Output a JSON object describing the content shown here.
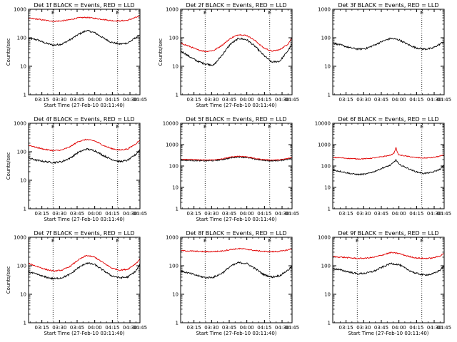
{
  "figure": {
    "rows": 3,
    "cols": 3,
    "colors": {
      "events": "#000000",
      "lld": "#e00000",
      "background": "#ffffff",
      "axes": "#000000"
    }
  },
  "chart_data": [
    {
      "type": "line",
      "title": "Det 1f BLACK = Events, RED = LLD",
      "xlabel": "Start Time (27-Feb-10 03:11:40)",
      "ylabel": "Counts/sec",
      "xlim": [
        3.667,
        98.5
      ],
      "ylim": [
        1,
        1000
      ],
      "yscale": "log",
      "xticks": [
        15,
        30,
        45,
        60,
        75,
        90,
        105
      ],
      "xtick_labels": [
        "03:15",
        "03:30",
        "03:45",
        "04:00",
        "04:15",
        "04:30",
        "04:45"
      ],
      "yticks": [
        1,
        10,
        100,
        1000
      ],
      "ytick_labels": [
        "1",
        "10",
        "100",
        "1000"
      ],
      "markers": [
        {
          "t": 24.5,
          "label": "E"
        },
        {
          "t": 79.5,
          "label": "E"
        }
      ],
      "series": [
        {
          "name": "Events",
          "color": "black",
          "x": [
            3.7,
            11,
            18,
            25,
            32,
            39,
            46,
            53,
            60,
            67,
            74,
            81,
            88,
            95,
            98.5
          ],
          "values": [
            95,
            85,
            65,
            55,
            60,
            85,
            130,
            180,
            150,
            100,
            70,
            60,
            65,
            100,
            130
          ]
        },
        {
          "name": "LLD",
          "color": "red",
          "x": [
            3.7,
            11,
            18,
            25,
            32,
            39,
            46,
            53,
            60,
            67,
            74,
            81,
            88,
            95,
            98.5
          ],
          "values": [
            480,
            450,
            410,
            380,
            390,
            430,
            500,
            520,
            480,
            440,
            400,
            390,
            410,
            520,
            570
          ]
        }
      ]
    },
    {
      "type": "line",
      "title": "Det 2f BLACK = Events, RED = LLD",
      "xlabel": "Start Time (27-Feb-10 03:11:40)",
      "ylabel": "Counts/sec",
      "xlim": [
        3.667,
        98.5
      ],
      "ylim": [
        1,
        1000
      ],
      "yscale": "log",
      "xticks": [
        15,
        30,
        45,
        60,
        75,
        90,
        105
      ],
      "xtick_labels": [
        "03:15",
        "03:30",
        "03:45",
        "04:00",
        "04:15",
        "04:30",
        "04:45"
      ],
      "yticks": [
        1,
        10,
        100,
        1000
      ],
      "ytick_labels": [
        "1",
        "10",
        "100",
        "1000"
      ],
      "markers": [
        {
          "t": 24.5,
          "label": "E"
        },
        {
          "t": 79.5,
          "label": "E"
        }
      ],
      "series": [
        {
          "name": "Events",
          "color": "black",
          "x": [
            3.7,
            11,
            18,
            25,
            32,
            39,
            46,
            53,
            60,
            67,
            74,
            81,
            88,
            95,
            98.5
          ],
          "values": [
            35,
            22,
            15,
            12,
            11,
            25,
            60,
            95,
            85,
            50,
            25,
            14,
            15,
            35,
            60
          ]
        },
        {
          "name": "LLD",
          "color": "red",
          "x": [
            3.7,
            11,
            18,
            25,
            32,
            39,
            46,
            53,
            60,
            67,
            74,
            81,
            88,
            95,
            98.5
          ],
          "values": [
            65,
            50,
            38,
            33,
            36,
            55,
            95,
            130,
            120,
            80,
            45,
            34,
            38,
            60,
            100
          ]
        }
      ]
    },
    {
      "type": "line",
      "title": "Det 3f BLACK = Events, RED = LLD",
      "xlabel": "",
      "ylabel": "",
      "xlim": [
        3.667,
        98.5
      ],
      "ylim": [
        1,
        1000
      ],
      "yscale": "log",
      "xticks": [
        15,
        30,
        45,
        60,
        75,
        90,
        105
      ],
      "xtick_labels": [
        "03:15",
        "03:30",
        "03:45",
        "04:00",
        "04:15",
        "04:30",
        "04:45"
      ],
      "yticks": [
        1,
        10,
        100,
        1000
      ],
      "ytick_labels": [
        "1",
        "10",
        "100",
        "1000"
      ],
      "markers": [
        {
          "t": 79.5,
          "label": "E"
        }
      ],
      "series": [
        {
          "name": "Events",
          "color": "black",
          "x": [
            3.7,
            11,
            18,
            25,
            32,
            39,
            46,
            53,
            60,
            67,
            74,
            81,
            88,
            95,
            98.5
          ],
          "values": [
            65,
            55,
            45,
            40,
            42,
            55,
            75,
            95,
            85,
            60,
            45,
            40,
            42,
            60,
            75
          ]
        }
      ]
    },
    {
      "type": "line",
      "title": "Det 4f BLACK = Events, RED = LLD",
      "xlabel": "Start Time (27-Feb-10 03:11:40)",
      "ylabel": "Counts/sec",
      "xlim": [
        3.667,
        98.5
      ],
      "ylim": [
        1,
        1000
      ],
      "yscale": "log",
      "xticks": [
        15,
        30,
        45,
        60,
        75,
        90,
        105
      ],
      "xtick_labels": [
        "03:15",
        "03:30",
        "03:45",
        "04:00",
        "04:15",
        "04:30",
        "04:45"
      ],
      "yticks": [
        1,
        10,
        100,
        1000
      ],
      "ytick_labels": [
        "1",
        "10",
        "100",
        "1000"
      ],
      "markers": [
        {
          "t": 24.5,
          "label": "E"
        },
        {
          "t": 79.5,
          "label": "E"
        }
      ],
      "series": [
        {
          "name": "Events",
          "color": "black",
          "x": [
            3.7,
            11,
            18,
            25,
            32,
            39,
            46,
            53,
            60,
            67,
            74,
            81,
            88,
            95,
            98.5
          ],
          "values": [
            60,
            50,
            45,
            42,
            45,
            60,
            95,
            125,
            110,
            75,
            55,
            45,
            50,
            80,
            120
          ]
        },
        {
          "name": "LLD",
          "color": "red",
          "x": [
            3.7,
            11,
            18,
            25,
            32,
            39,
            46,
            53,
            60,
            67,
            74,
            81,
            88,
            95,
            98.5
          ],
          "values": [
            170,
            140,
            120,
            110,
            115,
            150,
            230,
            270,
            240,
            170,
            130,
            115,
            125,
            190,
            260
          ]
        }
      ]
    },
    {
      "type": "line",
      "title": "Det 5f BLACK = Events, RED = LLD",
      "xlabel": "Start Time (27-Feb-10 03:11:40)",
      "ylabel": "",
      "xlim": [
        3.667,
        98.5
      ],
      "ylim": [
        1,
        10000
      ],
      "yscale": "log",
      "xticks": [
        15,
        30,
        45,
        60,
        75,
        90,
        105
      ],
      "xtick_labels": [
        "03:15",
        "03:30",
        "03:45",
        "04:00",
        "04:15",
        "04:30",
        "04:45"
      ],
      "yticks": [
        1,
        10,
        100,
        1000,
        10000
      ],
      "ytick_labels": [
        "1",
        "10",
        "100",
        "1000",
        "10000"
      ],
      "markers": [
        {
          "t": 24.5,
          "label": "E"
        },
        {
          "t": 79.5,
          "label": "E"
        }
      ],
      "series": [
        {
          "name": "Events",
          "color": "black",
          "x": [
            3.7,
            11,
            18,
            25,
            32,
            39,
            46,
            53,
            60,
            67,
            74,
            81,
            88,
            95,
            98.5
          ],
          "values": [
            190,
            185,
            180,
            175,
            180,
            200,
            240,
            270,
            250,
            210,
            185,
            175,
            180,
            210,
            230
          ]
        },
        {
          "name": "LLD",
          "color": "red",
          "x": [
            3.7,
            11,
            18,
            25,
            32,
            39,
            46,
            53,
            60,
            67,
            74,
            81,
            88,
            95,
            98.5
          ],
          "values": [
            210,
            205,
            195,
            190,
            195,
            215,
            260,
            290,
            270,
            225,
            200,
            190,
            195,
            225,
            250
          ]
        }
      ]
    },
    {
      "type": "line",
      "title": "Det 6f BLACK = Events, RED = LLD",
      "xlabel": "",
      "ylabel": "",
      "xlim": [
        3.667,
        98.5
      ],
      "ylim": [
        1,
        10000
      ],
      "yscale": "log",
      "xticks": [
        15,
        30,
        45,
        60,
        75,
        90,
        105
      ],
      "xtick_labels": [
        "03:15",
        "03:30",
        "03:45",
        "04:00",
        "04:15",
        "04:30",
        "04:45"
      ],
      "yticks": [
        1,
        10,
        100,
        1000,
        10000
      ],
      "ytick_labels": [
        "1",
        "10",
        "100",
        "1000",
        "10000"
      ],
      "markers": [
        {
          "t": 79.5,
          "label": "E"
        }
      ],
      "series": [
        {
          "name": "Events",
          "color": "black",
          "x": [
            3.7,
            11,
            18,
            25,
            32,
            39,
            46,
            53,
            56,
            57.5,
            59,
            60,
            67,
            74,
            81,
            88,
            95,
            98.5
          ],
          "values": [
            65,
            55,
            45,
            40,
            42,
            55,
            80,
            110,
            160,
            190,
            150,
            120,
            80,
            55,
            45,
            50,
            70,
            110
          ]
        },
        {
          "name": "LLD",
          "color": "red",
          "x": [
            3.7,
            11,
            18,
            25,
            32,
            39,
            46,
            53,
            56,
            57.5,
            59,
            60,
            67,
            74,
            81,
            88,
            95,
            98.5
          ],
          "values": [
            250,
            240,
            225,
            215,
            220,
            240,
            275,
            320,
            420,
            750,
            380,
            330,
            285,
            250,
            235,
            245,
            290,
            330
          ]
        }
      ]
    },
    {
      "type": "line",
      "title": "Det 7f BLACK = Events, RED = LLD",
      "xlabel": "Start Time (27-Feb-10 03:11:40)",
      "ylabel": "Counts/sec",
      "xlim": [
        3.667,
        98.5
      ],
      "ylim": [
        1,
        1000
      ],
      "yscale": "log",
      "xticks": [
        15,
        30,
        45,
        60,
        75,
        90,
        105
      ],
      "xtick_labels": [
        "03:15",
        "03:30",
        "03:45",
        "04:00",
        "04:15",
        "04:30",
        "04:45"
      ],
      "yticks": [
        1,
        10,
        100,
        1000
      ],
      "ytick_labels": [
        "1",
        "10",
        "100",
        "1000"
      ],
      "markers": [
        {
          "t": 24.5,
          "label": "E"
        },
        {
          "t": 79.5,
          "label": "E"
        }
      ],
      "series": [
        {
          "name": "Events",
          "color": "black",
          "x": [
            3.7,
            11,
            18,
            25,
            32,
            39,
            46,
            53,
            60,
            67,
            74,
            81,
            88,
            95,
            98.5
          ],
          "values": [
            60,
            50,
            40,
            35,
            38,
            50,
            85,
            125,
            110,
            70,
            45,
            38,
            40,
            65,
            110
          ]
        },
        {
          "name": "LLD",
          "color": "red",
          "x": [
            3.7,
            11,
            18,
            25,
            32,
            39,
            46,
            53,
            60,
            67,
            74,
            81,
            88,
            95,
            98.5
          ],
          "values": [
            120,
            95,
            75,
            65,
            70,
            95,
            160,
            230,
            200,
            130,
            85,
            70,
            75,
            120,
            170
          ]
        }
      ]
    },
    {
      "type": "line",
      "title": "Det 8f BLACK = Events, RED = LLD",
      "xlabel": "Start Time (27-Feb-10 03:11:40)",
      "ylabel": "",
      "xlim": [
        3.667,
        98.5
      ],
      "ylim": [
        1,
        1000
      ],
      "yscale": "log",
      "xticks": [
        15,
        30,
        45,
        60,
        75,
        90,
        105
      ],
      "xtick_labels": [
        "03:15",
        "03:30",
        "03:45",
        "04:00",
        "04:15",
        "04:30",
        "04:45"
      ],
      "yticks": [
        1,
        10,
        100,
        1000
      ],
      "ytick_labels": [
        "1",
        "10",
        "100",
        "1000"
      ],
      "markers": [
        {
          "t": 24.5,
          "label": "E"
        },
        {
          "t": 79.5,
          "label": "E"
        }
      ],
      "series": [
        {
          "name": "Events",
          "color": "black",
          "x": [
            3.7,
            11,
            18,
            25,
            32,
            39,
            46,
            53,
            60,
            67,
            74,
            81,
            88,
            95,
            98.5
          ],
          "values": [
            65,
            55,
            45,
            38,
            40,
            55,
            95,
            130,
            120,
            80,
            50,
            40,
            45,
            70,
            95
          ]
        },
        {
          "name": "LLD",
          "color": "red",
          "x": [
            3.7,
            11,
            18,
            25,
            32,
            39,
            46,
            53,
            60,
            67,
            74,
            81,
            88,
            95,
            98.5
          ],
          "values": [
            340,
            330,
            320,
            310,
            315,
            330,
            370,
            400,
            380,
            340,
            320,
            310,
            320,
            360,
            400
          ]
        }
      ]
    },
    {
      "type": "line",
      "title": "Det 9f BLACK = Events, RED = LLD",
      "xlabel": "Start Time (27-Feb-10 03:11:40)",
      "ylabel": "",
      "xlim": [
        3.667,
        98.5
      ],
      "ylim": [
        1,
        1000
      ],
      "yscale": "log",
      "xticks": [
        15,
        30,
        45,
        60,
        75,
        90,
        105
      ],
      "xtick_labels": [
        "03:15",
        "03:30",
        "03:45",
        "04:00",
        "04:15",
        "04:30",
        "04:45"
      ],
      "yticks": [
        1,
        10,
        100,
        1000
      ],
      "ytick_labels": [
        "1",
        "10",
        "100",
        "1000"
      ],
      "markers": [
        {
          "t": 24.5,
          "label": "E"
        },
        {
          "t": 79.5,
          "label": "E"
        }
      ],
      "series": [
        {
          "name": "Events",
          "color": "black",
          "x": [
            3.7,
            11,
            18,
            25,
            32,
            39,
            46,
            53,
            60,
            67,
            74,
            81,
            88,
            95,
            98.5
          ],
          "values": [
            80,
            70,
            60,
            52,
            55,
            65,
            90,
            120,
            110,
            75,
            55,
            48,
            50,
            70,
            100
          ]
        },
        {
          "name": "LLD",
          "color": "red",
          "x": [
            3.7,
            11,
            18,
            25,
            32,
            39,
            46,
            53,
            60,
            67,
            74,
            81,
            88,
            95,
            98.5
          ],
          "values": [
            210,
            200,
            190,
            180,
            185,
            200,
            240,
            290,
            270,
            220,
            190,
            180,
            185,
            220,
            280
          ]
        }
      ]
    }
  ]
}
